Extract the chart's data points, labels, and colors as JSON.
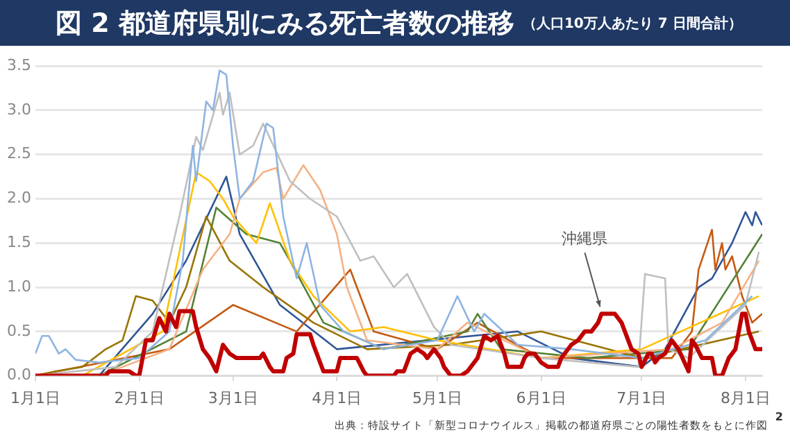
{
  "chart_data": {
    "type": "line",
    "title": "図 2 都道府県別にみる死亡者数の推移",
    "subtitle": "（人口10万人あたり 7 日間合計）",
    "annotations": [
      "出典：特設サイト「新型コロナウイルス」掲載の都道府県ごとの陽性者数をもとに作図",
      "2"
    ],
    "xlim": [
      "--01-01",
      "--08-06"
    ],
    "xticks": [
      {
        "value": "--01-01",
        "label": "1月1日"
      },
      {
        "value": "--02-01",
        "label": "2月1日"
      },
      {
        "value": "--03-01",
        "label": "3月1日"
      },
      {
        "value": "--04-01",
        "label": "4月1日"
      },
      {
        "value": "--05-01",
        "label": "5月1日"
      },
      {
        "value": "--06-01",
        "label": "6月1日"
      },
      {
        "value": "--07-01",
        "label": "7月1日"
      },
      {
        "value": "--08-01",
        "label": "8月1日"
      }
    ],
    "ylim": [
      0,
      3.5
    ],
    "yticks": [
      {
        "value": 0,
        "label": "0.0"
      },
      {
        "value": 0.5,
        "label": "0.5"
      },
      {
        "value": 1,
        "label": "1.0"
      },
      {
        "value": 1.5,
        "label": "1.5"
      },
      {
        "value": 2,
        "label": "2.0"
      },
      {
        "value": 2.5,
        "label": "2.5"
      },
      {
        "value": 3,
        "label": "3.0"
      },
      {
        "value": 3.5,
        "label": "3.5"
      }
    ],
    "grid": "y",
    "legend": false,
    "marker": "none",
    "line_style": "solid",
    "series": [
      {
        "color": "#8db4e2",
        "x": [
          "--01-01",
          "--01-03",
          "--01-05",
          "--01-08",
          "--01-10",
          "--01-13",
          "--01-20",
          "--02-01",
          "--02-10",
          "--02-14",
          "--02-17",
          "--02-18",
          "--02-21",
          "--02-23",
          "--02-25",
          "--02-27",
          "--03-01",
          "--03-03",
          "--03-07",
          "--03-11",
          "--03-13",
          "--03-16",
          "--03-20",
          "--03-23",
          "--03-27",
          "--04-03",
          "--04-15",
          "--05-01",
          "--05-07",
          "--05-12",
          "--05-15",
          "--05-25",
          "--06-10",
          "--07-01",
          "--07-20",
          "--08-03"
        ],
        "values": [
          0.25,
          0.45,
          0.45,
          0.25,
          0.3,
          0.18,
          0.15,
          0.2,
          0.5,
          1.3,
          2.6,
          2.2,
          3.1,
          3.0,
          3.45,
          3.4,
          2.6,
          2.0,
          2.2,
          2.85,
          2.8,
          1.8,
          1.1,
          1.5,
          0.8,
          0.5,
          0.3,
          0.4,
          0.9,
          0.5,
          0.7,
          0.35,
          0.3,
          0.2,
          0.4,
          0.9
        ]
      },
      {
        "color": "#bfbfbf",
        "x": [
          "--01-01",
          "--01-25",
          "--02-05",
          "--02-13",
          "--02-18",
          "--02-20",
          "--02-25",
          "--02-26",
          "--02-28",
          "--03-03",
          "--03-07",
          "--03-10",
          "--03-18",
          "--03-24",
          "--04-01",
          "--04-08",
          "--04-12",
          "--04-18",
          "--04-22",
          "--04-30",
          "--05-05",
          "--06-01",
          "--06-30",
          "--07-02",
          "--07-08",
          "--07-09",
          "--07-15",
          "--08-01",
          "--08-05"
        ],
        "values": [
          0,
          0.1,
          0.5,
          1.8,
          2.7,
          2.55,
          3.2,
          2.95,
          3.2,
          2.5,
          2.6,
          2.85,
          2.2,
          2.0,
          1.8,
          1.3,
          1.35,
          1.0,
          1.15,
          0.55,
          0.35,
          0.2,
          0.1,
          1.15,
          1.1,
          0.3,
          0.2,
          0.8,
          1.4
        ]
      },
      {
        "color": "#f4b183",
        "x": [
          "--01-20",
          "--02-10",
          "--02-20",
          "--02-28",
          "--03-03",
          "--03-10",
          "--03-14",
          "--03-16",
          "--03-22",
          "--03-27",
          "--04-01",
          "--04-04",
          "--04-10",
          "--05-01",
          "--05-10",
          "--06-01",
          "--07-10",
          "--07-25",
          "--08-05"
        ],
        "values": [
          0,
          0.3,
          1.2,
          1.6,
          2.0,
          2.3,
          2.35,
          2.0,
          2.38,
          2.1,
          1.6,
          1.0,
          0.4,
          0.3,
          0.6,
          0.2,
          0.3,
          0.6,
          1.3
        ]
      },
      {
        "color": "#ffc000",
        "x": [
          "--01-15",
          "--02-08",
          "--02-18",
          "--02-22",
          "--02-26",
          "--03-01",
          "--03-08",
          "--03-12",
          "--03-18",
          "--03-25",
          "--04-05",
          "--04-15",
          "--05-01",
          "--06-01",
          "--07-01",
          "--08-05"
        ],
        "values": [
          0,
          0.5,
          2.3,
          2.2,
          2.0,
          1.8,
          1.5,
          1.95,
          1.3,
          0.9,
          0.5,
          0.55,
          0.4,
          0.2,
          0.3,
          0.9
        ]
      },
      {
        "color": "#997300",
        "x": [
          "--01-01",
          "--01-07",
          "--01-15",
          "--01-22",
          "--01-27",
          "--01-31",
          "--02-05",
          "--02-10",
          "--02-15",
          "--02-21",
          "--02-28",
          "--03-10",
          "--03-25",
          "--04-10",
          "--05-05",
          "--06-01",
          "--07-01",
          "--08-05"
        ],
        "values": [
          0,
          0.05,
          0.1,
          0.3,
          0.4,
          0.9,
          0.85,
          0.6,
          1.0,
          1.8,
          1.3,
          1.0,
          0.6,
          0.3,
          0.35,
          0.5,
          0.2,
          0.5
        ]
      },
      {
        "color": "#548235",
        "x": [
          "--01-20",
          "--02-15",
          "--02-24",
          "--03-05",
          "--03-15",
          "--03-18",
          "--03-28",
          "--04-15",
          "--05-10",
          "--05-13",
          "--05-20",
          "--06-15",
          "--07-15",
          "--08-06"
        ],
        "values": [
          0,
          0.5,
          1.9,
          1.6,
          1.5,
          1.3,
          0.6,
          0.3,
          0.5,
          0.7,
          0.3,
          0.2,
          0.3,
          1.6
        ]
      },
      {
        "color": "#c55a11",
        "x": [
          "--01-01",
          "--02-10",
          "--03-01",
          "--03-20",
          "--04-05",
          "--04-12",
          "--05-01",
          "--05-13",
          "--06-01",
          "--07-10",
          "--07-16",
          "--07-18",
          "--07-22",
          "--07-23",
          "--07-25",
          "--07-26",
          "--07-28",
          "--07-31",
          "--08-03",
          "--08-06"
        ],
        "values": [
          0,
          0.3,
          0.8,
          0.5,
          1.2,
          0.5,
          0.3,
          0.6,
          0.2,
          0.2,
          0.5,
          1.2,
          1.65,
          1.2,
          1.5,
          1.2,
          1.35,
          0.9,
          0.6,
          0.7
        ]
      },
      {
        "color": "#2f5597",
        "x": [
          "--01-20",
          "--02-05",
          "--02-15",
          "--02-27",
          "--03-03",
          "--03-15",
          "--04-01",
          "--05-25",
          "--06-10",
          "--07-01",
          "--07-08",
          "--07-18",
          "--07-22",
          "--07-28",
          "--08-01",
          "--08-03",
          "--08-04",
          "--08-06"
        ],
        "values": [
          0,
          0.7,
          1.3,
          2.25,
          1.6,
          0.8,
          0.3,
          0.5,
          0.2,
          0.1,
          0.3,
          1.0,
          1.1,
          1.5,
          1.85,
          1.7,
          1.85,
          1.7
        ]
      },
      {
        "name": "沖縄県",
        "color": "#c00000",
        "x": [
          "--01-01",
          "--01-22",
          "--01-23",
          "--01-29",
          "--01-31",
          "--02-01",
          "--02-03",
          "--02-05",
          "--02-07",
          "--02-09",
          "--02-10",
          "--02-12",
          "--02-13",
          "--02-17",
          "--02-18",
          "--02-20",
          "--02-22",
          "--02-24",
          "--02-25",
          "--02-26",
          "--02-28",
          "--03-02",
          "--03-09",
          "--03-10",
          "--03-12",
          "--03-13",
          "--03-16",
          "--03-17",
          "--03-19",
          "--03-20",
          "--03-24",
          "--03-25",
          "--03-27",
          "--03-28",
          "--04-01",
          "--04-02",
          "--04-07",
          "--04-09",
          "--04-10",
          "--04-18",
          "--04-19",
          "--04-21",
          "--04-23",
          "--04-25",
          "--04-27",
          "--04-28",
          "--04-30",
          "--05-02",
          "--05-03",
          "--05-05",
          "--05-08",
          "--05-10",
          "--05-13",
          "--05-15",
          "--05-17",
          "--05-19",
          "--05-21",
          "--05-22",
          "--05-26",
          "--05-27",
          "--05-28",
          "--05-30",
          "--06-01",
          "--06-03",
          "--06-06",
          "--06-07",
          "--06-10",
          "--06-12",
          "--06-14",
          "--06-16",
          "--06-18",
          "--06-19",
          "--06-23",
          "--06-25",
          "--06-26",
          "--06-28",
          "--06-30",
          "--07-01",
          "--07-03",
          "--07-04",
          "--07-05",
          "--07-06",
          "--07-08",
          "--07-10",
          "--07-12",
          "--07-15",
          "--07-16",
          "--07-17",
          "--07-19",
          "--07-22",
          "--07-23",
          "--07-25",
          "--07-27",
          "--07-29",
          "--07-31",
          "--08-01",
          "--08-02",
          "--08-04",
          "--08-06"
        ],
        "values": [
          0,
          0,
          0.05,
          0.05,
          0,
          0,
          0.4,
          0.4,
          0.65,
          0.5,
          0.7,
          0.55,
          0.73,
          0.73,
          0.55,
          0.3,
          0.2,
          0.05,
          0.2,
          0.35,
          0.25,
          0.2,
          0.2,
          0.25,
          0.1,
          0.05,
          0.05,
          0.2,
          0.25,
          0.47,
          0.47,
          0.35,
          0.15,
          0.05,
          0.05,
          0.2,
          0.2,
          0.05,
          0,
          0,
          0.05,
          0.05,
          0.25,
          0.3,
          0.25,
          0.2,
          0.3,
          0.2,
          0.1,
          0,
          0,
          0.05,
          0.2,
          0.45,
          0.4,
          0.45,
          0.25,
          0.1,
          0.1,
          0.2,
          0.25,
          0.25,
          0.15,
          0.1,
          0.1,
          0.2,
          0.35,
          0.4,
          0.5,
          0.5,
          0.6,
          0.7,
          0.7,
          0.6,
          0.5,
          0.3,
          0.25,
          0.1,
          0.25,
          0.25,
          0.15,
          0.2,
          0.25,
          0.4,
          0.3,
          0.05,
          0.4,
          0.35,
          0.2,
          0.2,
          0,
          0,
          0.2,
          0.3,
          0.7,
          0.7,
          0.5,
          0.3,
          0.3
        ]
      }
    ]
  }
}
